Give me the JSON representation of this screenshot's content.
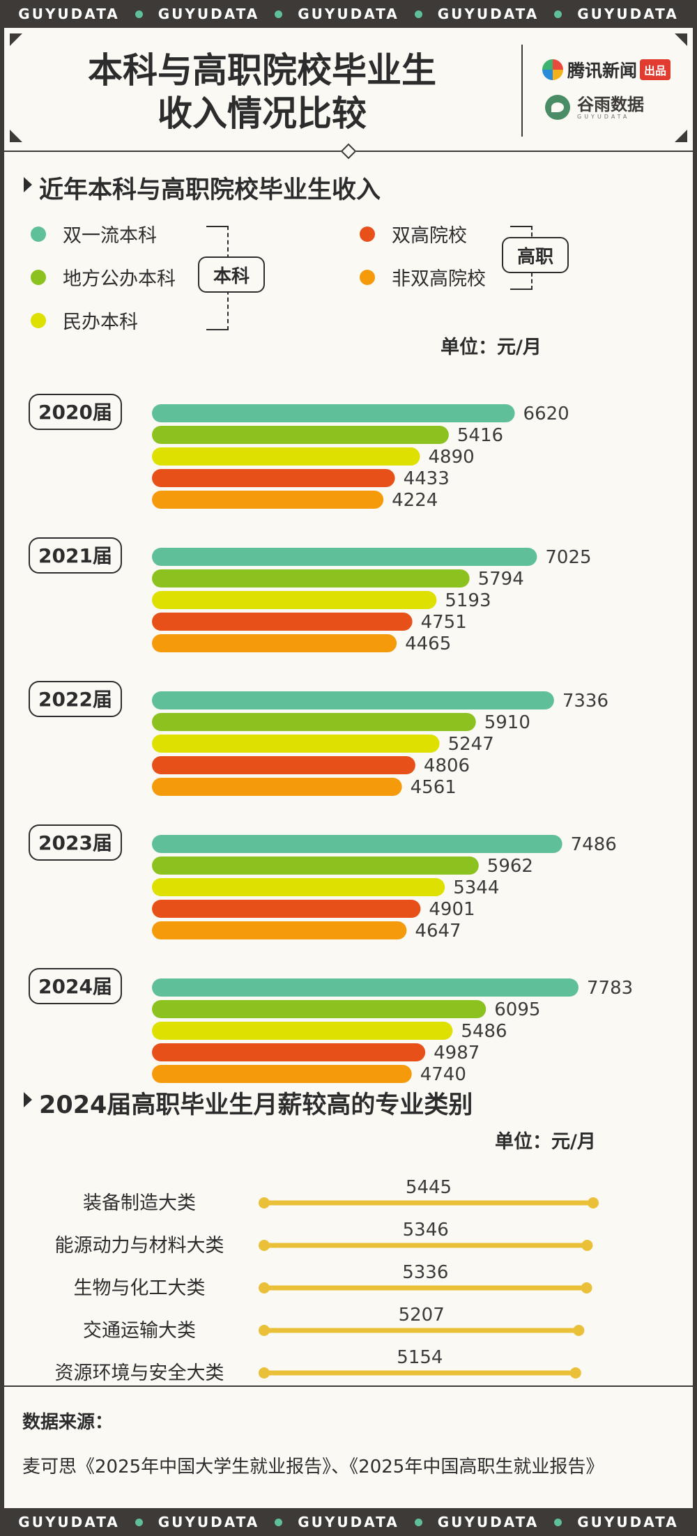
{
  "strip_text": [
    "GUYUDATA",
    "GUYUDATA",
    "GUYUDATA",
    "GUYUDATA",
    "GUYUDATA"
  ],
  "title": {
    "line1": "本科与高职院校毕业生",
    "line2": "收入情况比较"
  },
  "logos": {
    "tencent": "腾讯新闻",
    "tencent_badge": "出品",
    "guyu": "谷雨数据",
    "guyu_sub": "GUYUDATA"
  },
  "section1": {
    "title": "近年本科与高职院校毕业生收入",
    "unit": "单位：元/月",
    "group_labels": {
      "undergrad": "本科",
      "vocational": "高职"
    }
  },
  "legend": [
    {
      "name": "双一流本科",
      "color": "#5fbf98"
    },
    {
      "name": "地方公办本科",
      "color": "#8cc21f"
    },
    {
      "name": "民办本科",
      "color": "#dde000"
    },
    {
      "name": "双高院校",
      "color": "#e8501a"
    },
    {
      "name": "非双高院校",
      "color": "#f59a0a"
    }
  ],
  "chart_data": [
    {
      "type": "bar",
      "orientation": "horizontal",
      "title": "近年本科与高职院校毕业生收入",
      "unit": "元/月",
      "categories": [
        "2020届",
        "2021届",
        "2022届",
        "2023届",
        "2024届"
      ],
      "series": [
        {
          "name": "双一流本科",
          "values": [
            6620,
            7025,
            7336,
            7486,
            7783
          ]
        },
        {
          "name": "地方公办本科",
          "values": [
            5416,
            5794,
            5910,
            5962,
            6095
          ]
        },
        {
          "name": "民办本科",
          "values": [
            4890,
            5193,
            5247,
            5344,
            5486
          ]
        },
        {
          "name": "双高院校",
          "values": [
            4433,
            4751,
            4806,
            4901,
            4987
          ]
        },
        {
          "name": "非双高院校",
          "values": [
            4224,
            4465,
            4561,
            4647,
            4740
          ]
        }
      ],
      "xlim": [
        0,
        8000
      ],
      "grid": false,
      "legend_position": "top"
    },
    {
      "type": "bar",
      "orientation": "horizontal",
      "style": "lollipop",
      "title": "2024届高职毕业生月薪较高的专业类别",
      "unit": "元/月",
      "categories": [
        "装备制造大类",
        "能源动力与材料大类",
        "生物与化工大类",
        "交通运输大类",
        "资源环境与安全大类"
      ],
      "values": [
        5445,
        5346,
        5336,
        5207,
        5154
      ],
      "color": "#e9c037"
    }
  ],
  "section2": {
    "title": "2024届高职毕业生月薪较高的专业类别",
    "unit": "单位：元/月"
  },
  "source": {
    "label": "数据来源：",
    "text": "麦可思《2025年中国大学生就业报告》、《2025年中国高职生就业报告》"
  },
  "colors": {
    "frame": "#3d3a38",
    "background": "#fbf9f4",
    "lollipop": "#e9c037"
  }
}
